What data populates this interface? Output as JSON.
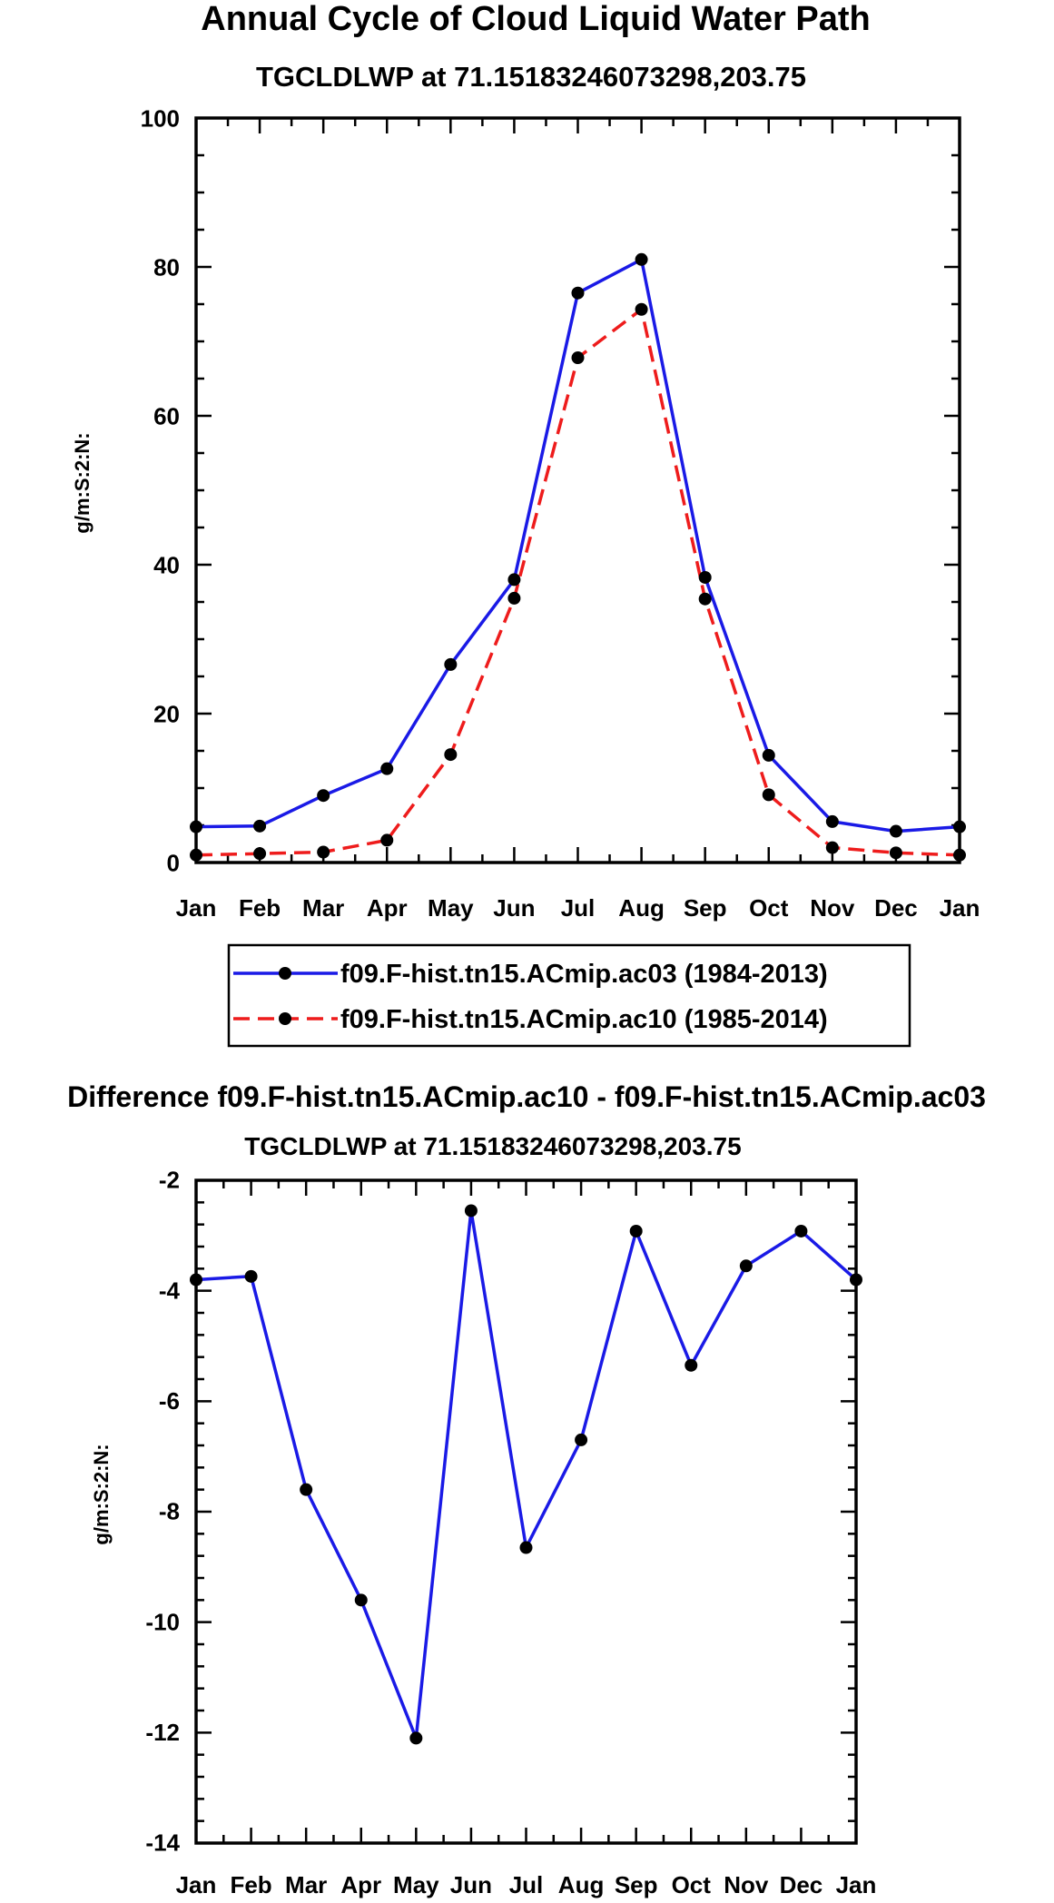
{
  "chart_data": [
    {
      "type": "line",
      "title": "Annual Cycle of Cloud Liquid Water Path",
      "subtitle": "TGCLDLWP at 71.15183246073298,203.75",
      "xlabel": "",
      "ylabel": "g/m:S:2:N:",
      "ylim": [
        0,
        100
      ],
      "yticks": [
        "0",
        "20",
        "40",
        "60",
        "80",
        "100"
      ],
      "categories": [
        "Jan",
        "Feb",
        "Mar",
        "Apr",
        "May",
        "Jun",
        "Jul",
        "Aug",
        "Sep",
        "Oct",
        "Nov",
        "Dec",
        "Jan"
      ],
      "legend_position": "bottom",
      "series": [
        {
          "name": "f09.F-hist.tn15.ACmip.ac03 (1984-2013)",
          "color": "#1a1ae6",
          "dash": "solid",
          "values": [
            4.8,
            4.9,
            9.0,
            12.6,
            26.6,
            38.0,
            76.5,
            81.0,
            38.3,
            14.4,
            5.5,
            4.2,
            4.8
          ]
        },
        {
          "name": "f09.F-hist.tn15.ACmip.ac10 (1985-2014)",
          "color": "#ee1c1c",
          "dash": "dashed",
          "values": [
            1.0,
            1.2,
            1.4,
            3.0,
            14.5,
            35.5,
            67.8,
            74.3,
            35.4,
            9.1,
            2.0,
            1.3,
            1.0
          ]
        }
      ]
    },
    {
      "type": "line",
      "title": "Difference f09.F-hist.tn15.ACmip.ac10 - f09.F-hist.tn15.ACmip.ac03",
      "subtitle": "TGCLDLWP at 71.15183246073298,203.75",
      "xlabel": "",
      "ylabel": "g/m:S:2:N:",
      "ylim": [
        -14,
        -2
      ],
      "yticks": [
        "-14",
        "-12",
        "-10",
        "-8",
        "-6",
        "-4",
        "-2"
      ],
      "categories": [
        "Jan",
        "Feb",
        "Mar",
        "Apr",
        "May",
        "Jun",
        "Jul",
        "Aug",
        "Sep",
        "Oct",
        "Nov",
        "Dec",
        "Jan"
      ],
      "series": [
        {
          "name": "Difference",
          "color": "#1a1ae6",
          "dash": "solid",
          "values": [
            -3.8,
            -3.74,
            -7.6,
            -9.6,
            -12.1,
            -2.55,
            -8.65,
            -6.7,
            -2.92,
            -5.35,
            -3.55,
            -2.92,
            -3.8
          ]
        }
      ]
    }
  ]
}
